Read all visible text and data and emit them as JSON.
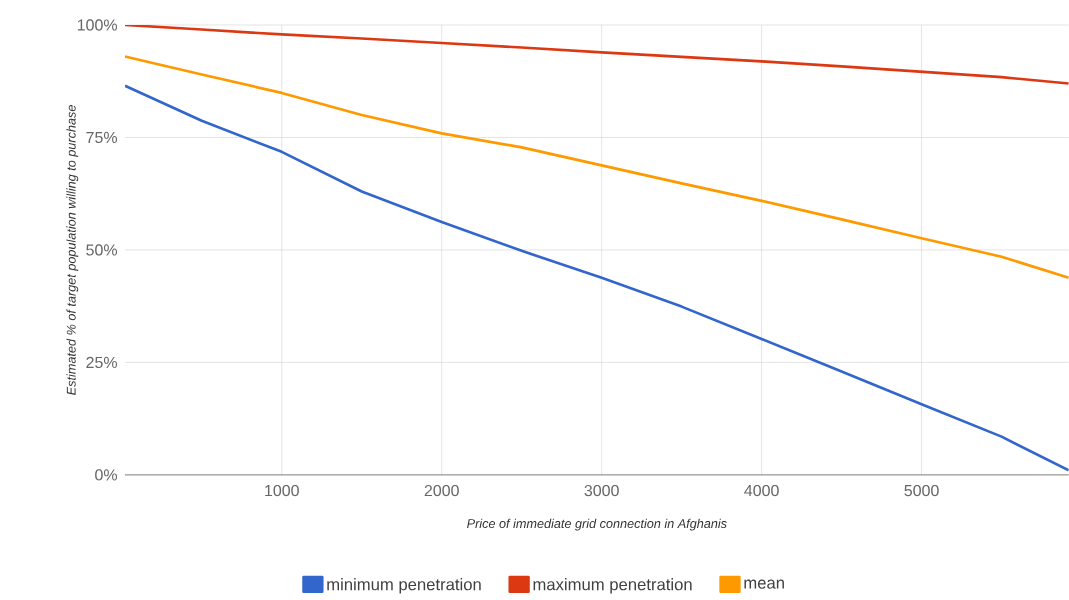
{
  "chart_data": {
    "type": "line",
    "xlabel": "Price of immediate grid connection in Afghanis",
    "ylabel": "Estimated % of target population willing to purchase",
    "x": [
      20,
      500,
      1000,
      1500,
      2000,
      2500,
      3000,
      3500,
      4000,
      4500,
      5000,
      5500,
      5920
    ],
    "series": [
      {
        "name": "minimum penetration",
        "color": "#3366cc",
        "values": [
          86.5,
          78.7,
          71.8,
          63,
          56.2,
          49.8,
          43.8,
          37.4,
          30.2,
          23,
          15.7,
          8.5,
          1
        ]
      },
      {
        "name": "maximum penetration",
        "color": "#dc3912",
        "values": [
          100,
          99,
          97.9,
          97,
          96,
          95,
          93.9,
          92.9,
          91.9,
          90.8,
          89.6,
          88.4,
          87
        ]
      },
      {
        "name": "mean",
        "color": "#ff9900",
        "values": [
          93,
          89,
          84.9,
          80,
          75.9,
          72.8,
          68.8,
          64.8,
          60.9,
          56.8,
          52.6,
          48.5,
          43.8
        ]
      }
    ],
    "xlim": [
      20,
      5920
    ],
    "xticks": [
      1000,
      2000,
      3000,
      4000,
      5000
    ],
    "ylim": [
      0,
      100
    ],
    "yticks": [
      {
        "value": 0,
        "label": "0%"
      },
      {
        "value": 25,
        "label": "25%"
      },
      {
        "value": 50,
        "label": "50%"
      },
      {
        "value": 75,
        "label": "75%"
      },
      {
        "value": 100,
        "label": "100%"
      }
    ],
    "grid": true,
    "legend": "bottom",
    "marker": "none",
    "line_style": "solid"
  }
}
